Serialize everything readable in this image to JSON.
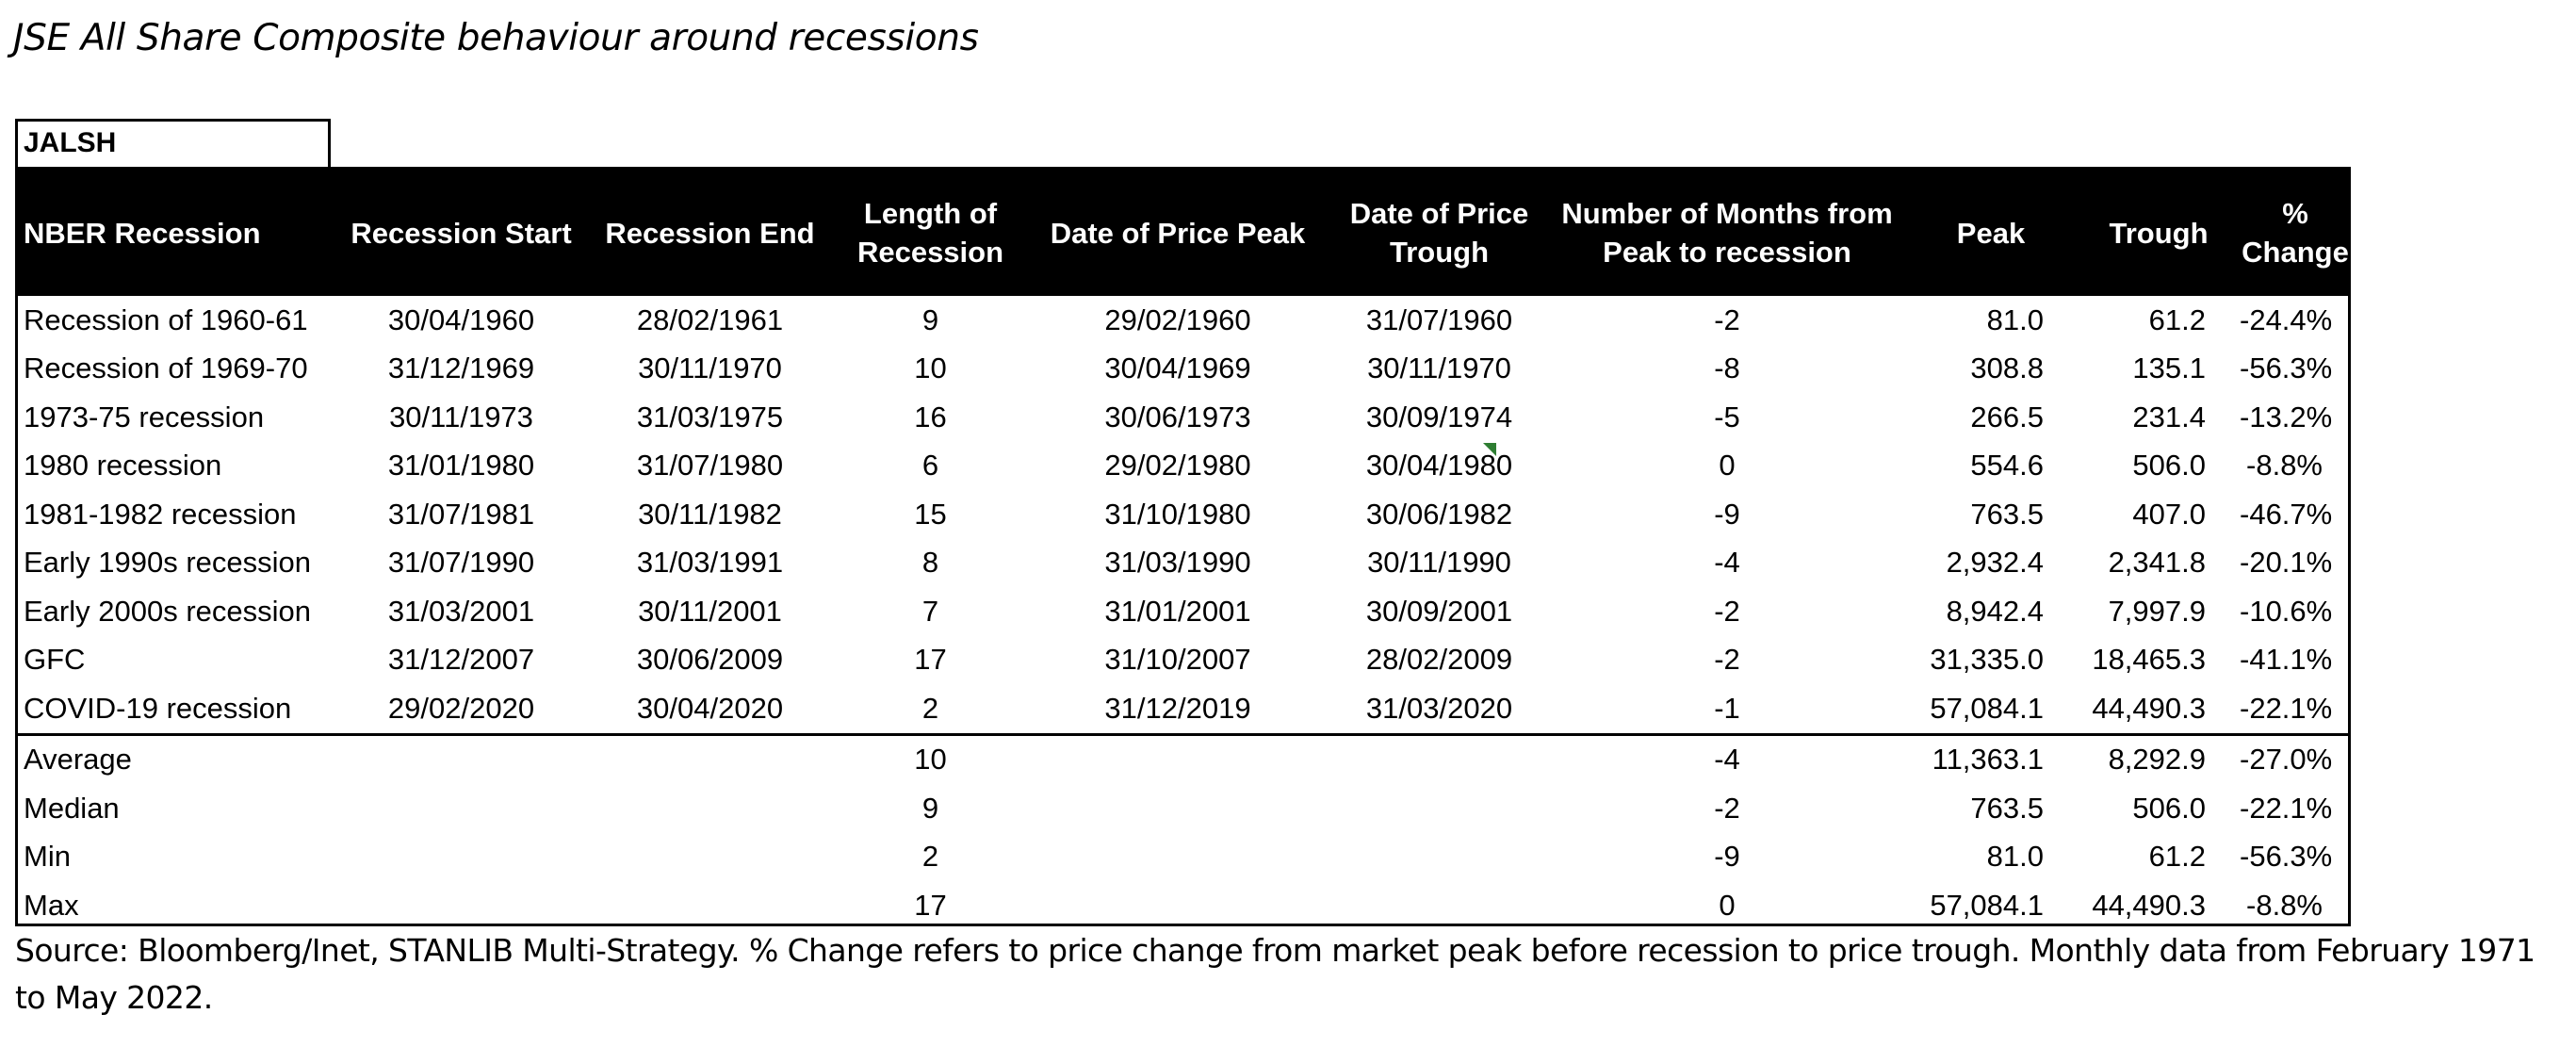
{
  "title": "JSE All Share Composite behaviour around recessions",
  "ticker": "JALSH",
  "columns": [
    "NBER Recession",
    "Recession Start",
    "Recession End",
    "Length of Recession",
    "Date of Price Peak",
    "Date of Price Trough",
    "Number of Months from Peak to recession",
    "Peak",
    "Trough",
    "% Change"
  ],
  "rows": [
    [
      "Recession of 1960-61",
      "30/04/1960",
      "28/02/1961",
      "9",
      "29/02/1960",
      "31/07/1960",
      "-2",
      "81.0",
      "61.2",
      "-24.4%"
    ],
    [
      "Recession of 1969-70",
      "31/12/1969",
      "30/11/1970",
      "10",
      "30/04/1969",
      "30/11/1970",
      "-8",
      "308.8",
      "135.1",
      "-56.3%"
    ],
    [
      "1973-75 recession",
      "30/11/1973",
      "31/03/1975",
      "16",
      "30/06/1973",
      "30/09/1974",
      "-5",
      "266.5",
      "231.4",
      "-13.2%"
    ],
    [
      "1980 recession",
      "31/01/1980",
      "31/07/1980",
      "6",
      "29/02/1980",
      "30/04/1980",
      "0",
      "554.6",
      "506.0",
      "-8.8%"
    ],
    [
      "1981-1982 recession",
      "31/07/1981",
      "30/11/1982",
      "15",
      "31/10/1980",
      "30/06/1982",
      "-9",
      "763.5",
      "407.0",
      "-46.7%"
    ],
    [
      "Early 1990s recession",
      "31/07/1990",
      "31/03/1991",
      "8",
      "31/03/1990",
      "30/11/1990",
      "-4",
      "2,932.4",
      "2,341.8",
      "-20.1%"
    ],
    [
      "Early 2000s recession",
      "31/03/2001",
      "30/11/2001",
      "7",
      "31/01/2001",
      "30/09/2001",
      "-2",
      "8,942.4",
      "7,997.9",
      "-10.6%"
    ],
    [
      "GFC",
      "31/12/2007",
      "30/06/2009",
      "17",
      "31/10/2007",
      "28/02/2009",
      "-2",
      "31,335.0",
      "18,465.3",
      "-41.1%"
    ],
    [
      "COVID-19 recession",
      "29/02/2020",
      "30/04/2020",
      "2",
      "31/12/2019",
      "31/03/2020",
      "-1",
      "57,084.1",
      "44,490.3",
      "-22.1%"
    ]
  ],
  "summary": [
    [
      "Average",
      "",
      "",
      "10",
      "",
      "",
      "-4",
      "11,363.1",
      "8,292.9",
      "-27.0%"
    ],
    [
      "Median",
      "",
      "",
      "9",
      "",
      "",
      "-2",
      "763.5",
      "506.0",
      "-22.1%"
    ],
    [
      "Min",
      "",
      "",
      "2",
      "",
      "",
      "-9",
      "81.0",
      "61.2",
      "-56.3%"
    ],
    [
      "Max",
      "",
      "",
      "17",
      "",
      "",
      "0",
      "57,084.1",
      "44,490.3",
      "-8.8%"
    ]
  ],
  "source_note": "Source: Bloomberg/Inet, STANLIB Multi-Strategy. % Change refers to price change from market peak before recession to price trough. Monthly data from February 1971 to May 2022.",
  "colors": {
    "header_bg": "#000000",
    "header_text": "#ffffff",
    "comment_marker": "#2e7d32"
  }
}
